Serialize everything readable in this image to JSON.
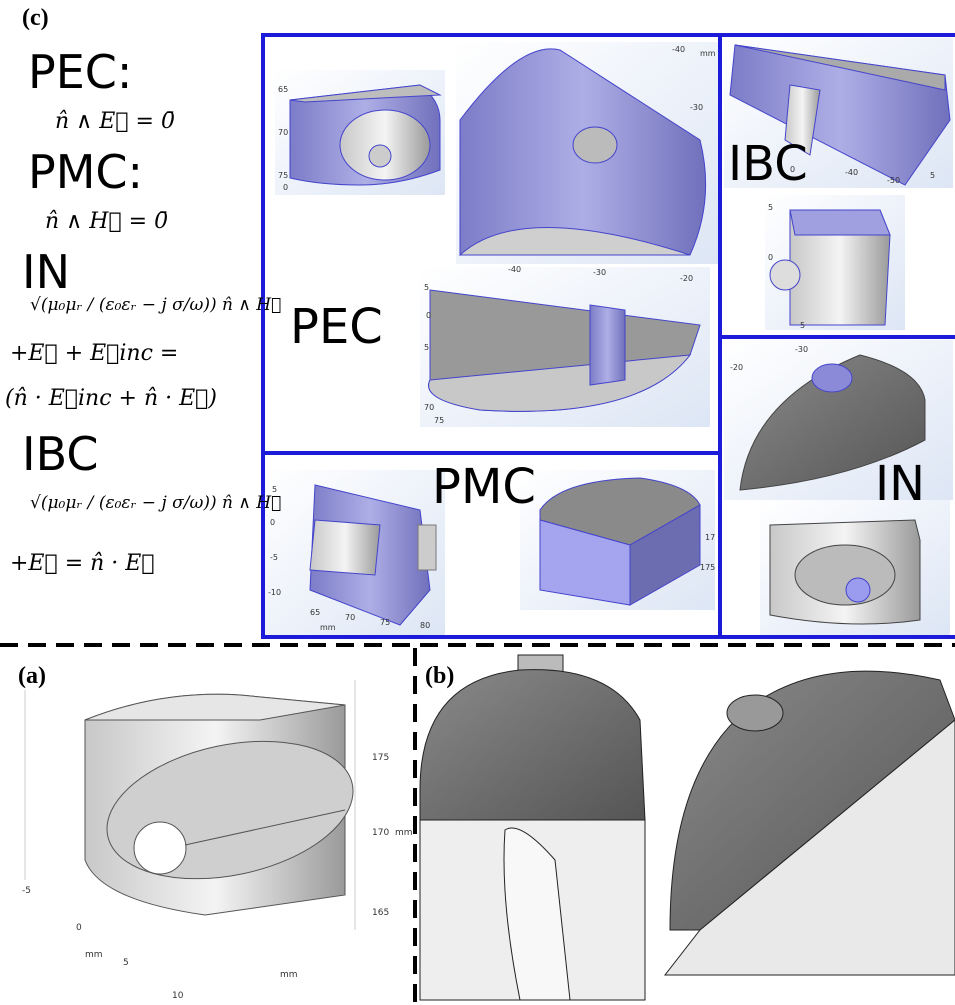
{
  "panel_c": {
    "label": "(c)",
    "equations": [
      {
        "name": "PEC:",
        "formula": [
          "n̂ ∧ E⃗ = 0̄"
        ]
      },
      {
        "name": "PMC:",
        "formula": [
          "n̂ ∧ H⃗ = 0̄"
        ]
      },
      {
        "name": "IN",
        "formula": [
          "√(μ₀μᵣ / (ε₀εᵣ − j σ/ω)) n̂ ∧ H⃗",
          "+E⃗ + E⃗inc =",
          "(n̂ · E⃗inc + n̂ · E⃗)"
        ]
      },
      {
        "name": "IBC",
        "formula": [
          "√(μ₀μᵣ / (ε₀εᵣ − j σ/ω)) n̂ ∧ H⃗",
          "+E⃗ = n̂ · E⃗"
        ]
      }
    ],
    "regions": [
      "PEC",
      "IBC",
      "PMC",
      "IN"
    ],
    "inset_ticks": [
      [
        "65",
        "70",
        "75",
        "0"
      ],
      [
        "-40",
        "-30",
        "mm"
      ],
      [
        "-40",
        "-30",
        "-20",
        "5",
        "0",
        "5",
        "70",
        "75"
      ],
      [
        "-40",
        "-50",
        "0",
        "5"
      ],
      [
        "5",
        "0",
        "5"
      ],
      [
        "-30",
        "-20"
      ],
      [
        "5",
        "0",
        "-5",
        "-10",
        "65",
        "70",
        "75",
        "80",
        "mm"
      ],
      [
        "17",
        "175"
      ]
    ]
  },
  "panel_a": {
    "label": "(a)",
    "ticks": [
      "175",
      "170",
      "mm",
      "165",
      "-5",
      "0",
      "5",
      "10",
      "mm",
      "mm"
    ]
  },
  "panel_b": {
    "label": "(b)"
  }
}
